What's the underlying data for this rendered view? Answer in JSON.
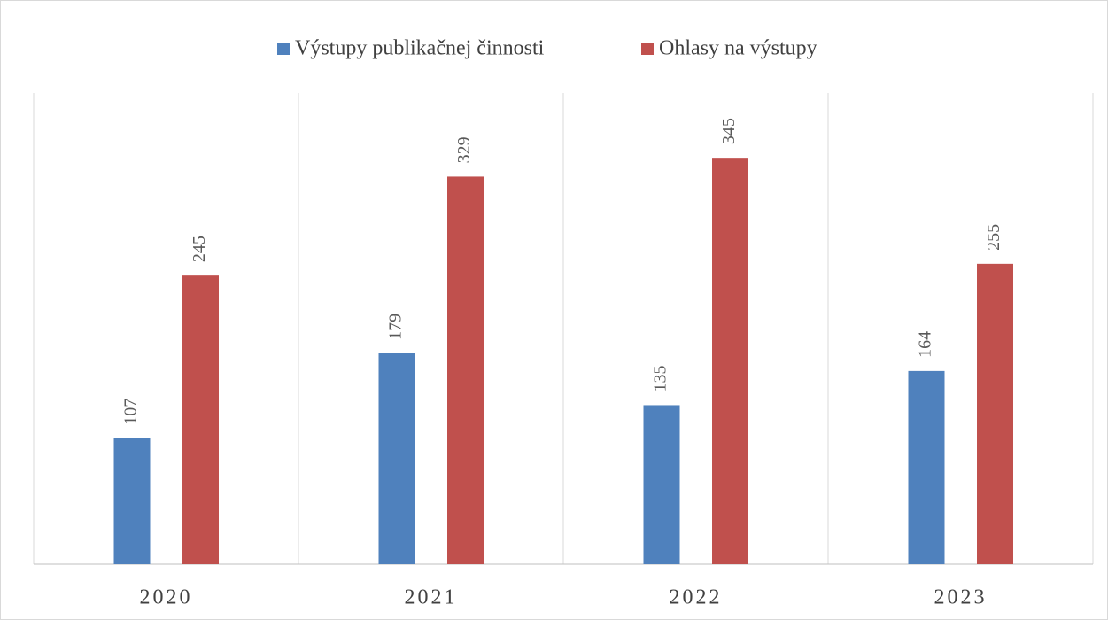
{
  "chart_data": {
    "type": "bar",
    "categories": [
      "2020",
      "2021",
      "2022",
      "2023"
    ],
    "series": [
      {
        "name": "Výstupy publikačnej činnosti",
        "color": "#4f81bd",
        "values": [
          107,
          179,
          135,
          164
        ]
      },
      {
        "name": "Ohlasy na výstupy",
        "color": "#c0504d",
        "values": [
          245,
          329,
          345,
          255
        ]
      }
    ],
    "ylim": [
      0,
      400
    ],
    "legend": "top"
  }
}
